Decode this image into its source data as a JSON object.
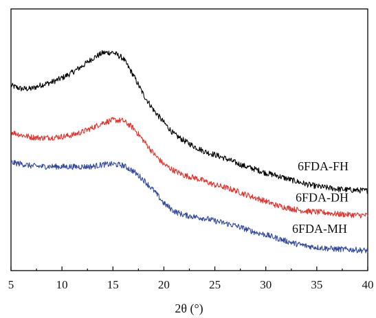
{
  "chart_data": {
    "type": "line",
    "title": "",
    "xlabel": "2θ (°)",
    "ylabel": "",
    "xlim": [
      5,
      40
    ],
    "ylim": [
      0,
      1
    ],
    "xticks": [
      5,
      10,
      15,
      20,
      25,
      30,
      35,
      40
    ],
    "yticks_visible": false,
    "grid": false,
    "legend": "none (series labeled inline at right)",
    "series": [
      {
        "name": "6FDA-FH",
        "color": "#000000",
        "x": [
          5,
          6,
          7,
          8,
          9,
          10,
          11,
          12,
          13,
          14,
          15,
          16,
          17,
          18,
          19,
          20,
          21,
          22,
          23,
          24,
          25,
          26,
          27,
          28,
          29,
          30,
          31,
          32,
          33,
          34,
          35,
          36,
          37,
          38,
          39,
          40
        ],
        "values": [
          0.707,
          0.695,
          0.695,
          0.71,
          0.72,
          0.736,
          0.757,
          0.782,
          0.811,
          0.832,
          0.834,
          0.811,
          0.747,
          0.672,
          0.613,
          0.566,
          0.521,
          0.496,
          0.474,
          0.455,
          0.443,
          0.429,
          0.413,
          0.398,
          0.387,
          0.373,
          0.364,
          0.352,
          0.341,
          0.33,
          0.322,
          0.317,
          0.312,
          0.309,
          0.307,
          0.305
        ]
      },
      {
        "name": "6FDA-DH",
        "color": "#e8302b",
        "x": [
          5,
          6,
          7,
          8,
          9,
          10,
          11,
          12,
          13,
          14,
          15,
          16,
          17,
          18,
          19,
          20,
          21,
          22,
          23,
          24,
          25,
          26,
          27,
          28,
          29,
          30,
          31,
          32,
          33,
          34,
          35,
          36,
          37,
          38,
          39,
          40
        ],
        "values": [
          0.53,
          0.518,
          0.51,
          0.507,
          0.509,
          0.512,
          0.518,
          0.53,
          0.546,
          0.565,
          0.575,
          0.573,
          0.545,
          0.497,
          0.447,
          0.406,
          0.382,
          0.364,
          0.355,
          0.342,
          0.327,
          0.318,
          0.306,
          0.291,
          0.278,
          0.265,
          0.25,
          0.241,
          0.233,
          0.227,
          0.224,
          0.221,
          0.216,
          0.214,
          0.212,
          0.211
        ]
      },
      {
        "name": "6FDA-MH",
        "color": "#3048a0",
        "x": [
          5,
          6,
          7,
          8,
          9,
          10,
          11,
          12,
          13,
          14,
          15,
          16,
          17,
          18,
          19,
          20,
          21,
          22,
          23,
          24,
          25,
          26,
          27,
          28,
          29,
          30,
          31,
          32,
          33,
          34,
          35,
          36,
          37,
          38,
          39,
          40
        ],
        "values": [
          0.413,
          0.408,
          0.4,
          0.398,
          0.398,
          0.397,
          0.397,
          0.397,
          0.398,
          0.405,
          0.407,
          0.402,
          0.38,
          0.347,
          0.306,
          0.257,
          0.227,
          0.212,
          0.206,
          0.2,
          0.19,
          0.181,
          0.172,
          0.159,
          0.146,
          0.137,
          0.125,
          0.113,
          0.102,
          0.094,
          0.089,
          0.085,
          0.082,
          0.081,
          0.079,
          0.076
        ]
      }
    ]
  }
}
